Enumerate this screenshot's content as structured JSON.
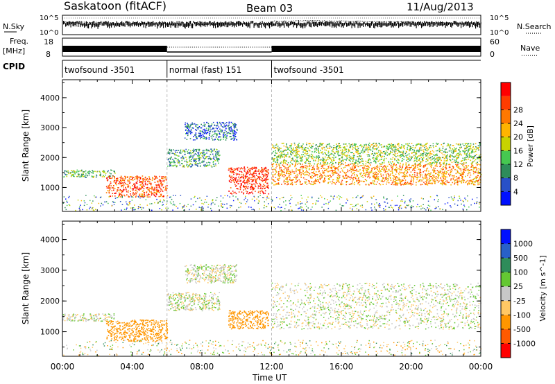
{
  "header": {
    "station": "Saskatoon (fitACF)",
    "beam": "Beam 03",
    "date": "11/Aug/2013"
  },
  "strips": {
    "nsky_label": "N.Sky",
    "nsearch_label": "N.Search",
    "freq_label_1": "Freq.",
    "freq_label_2": "[MHz]",
    "nave_label": "Nave",
    "cpid_label": "CPID",
    "nsky_ticks": [
      "10^5",
      "10^0"
    ],
    "nsearch_ticks": [
      "10^5",
      "10^0"
    ],
    "freq_ticks": [
      "18",
      "8"
    ],
    "nave_ticks": [
      "60",
      "0"
    ]
  },
  "cpid_segments": [
    {
      "label": "twofsound -3501",
      "start": 0,
      "end": 6
    },
    {
      "label": "normal (fast) 151",
      "start": 6,
      "end": 12
    },
    {
      "label": "twofsound -3501",
      "start": 12,
      "end": 24
    }
  ],
  "xaxis": {
    "label": "Time UT",
    "ticks": [
      "00:00",
      "04:00",
      "08:00",
      "12:00",
      "16:00",
      "20:00",
      "00:00"
    ]
  },
  "power_panel": {
    "ylabel": "Slant Range [km]",
    "yticks": [
      "1000",
      "2000",
      "3000",
      "4000"
    ],
    "colorbar_label": "Power [dB]",
    "colorbar_ticks": [
      "4",
      "8",
      "12",
      "16",
      "20",
      "24",
      "28"
    ],
    "colorbar_colors": [
      "#0010ff",
      "#2850c8",
      "#2e8c5a",
      "#46c850",
      "#c8d200",
      "#ffb400",
      "#ff7800",
      "#ff3c00",
      "#ff0000"
    ]
  },
  "velocity_panel": {
    "ylabel": "Slant Range [km]",
    "yticks": [
      "1000",
      "2000",
      "3000",
      "4000"
    ],
    "colorbar_label": "Velocity [m s^-1]",
    "colorbar_ticks": [
      "-1000",
      "-500",
      "-100",
      "-25",
      "25",
      "100",
      "500",
      "1000"
    ],
    "colorbar_colors": [
      "#ff0000",
      "#ff5a00",
      "#ff9600",
      "#ffc864",
      "#c8c8c8",
      "#64c832",
      "#2e8c5a",
      "#2860c8",
      "#0010ff"
    ]
  },
  "chart_data": [
    {
      "type": "heatmap",
      "title": "Power",
      "xlabel": "Time UT",
      "ylabel": "Slant Range [km]",
      "xlim": [
        0,
        24
      ],
      "ylim": [
        200,
        4600
      ],
      "zlabel": "Power [dB]",
      "zlim": [
        0,
        32
      ],
      "regions": [
        {
          "t0": 0.0,
          "t1": 3.0,
          "r0": 1350,
          "r1": 1600,
          "value": 12
        },
        {
          "t0": 2.5,
          "t1": 6.0,
          "r0": 700,
          "r1": 1400,
          "value": 26
        },
        {
          "t0": 6.0,
          "t1": 9.0,
          "r0": 1700,
          "r1": 2300,
          "value": 10
        },
        {
          "t0": 7.0,
          "t1": 10.0,
          "r0": 2600,
          "r1": 3200,
          "value": 6
        },
        {
          "t0": 9.5,
          "t1": 11.8,
          "r0": 800,
          "r1": 1700,
          "value": 28
        },
        {
          "t0": 12.0,
          "t1": 24.0,
          "r0": 1100,
          "r1": 1800,
          "value": 22
        },
        {
          "t0": 12.0,
          "t1": 24.0,
          "r0": 1800,
          "r1": 2500,
          "value": 14
        }
      ]
    },
    {
      "type": "heatmap",
      "title": "Velocity",
      "xlabel": "Time UT",
      "ylabel": "Slant Range [km]",
      "xlim": [
        0,
        24
      ],
      "ylim": [
        200,
        4600
      ],
      "zlabel": "Velocity [m s^-1]",
      "zlim": [
        -1000,
        1000
      ],
      "regions": [
        {
          "t0": 0.0,
          "t1": 3.0,
          "r0": 1350,
          "r1": 1600,
          "value": 0
        },
        {
          "t0": 2.5,
          "t1": 6.0,
          "r0": 700,
          "r1": 1400,
          "value": -300
        },
        {
          "t0": 6.0,
          "t1": 9.0,
          "r0": 1700,
          "r1": 2300,
          "value": 0
        },
        {
          "t0": 7.0,
          "t1": 10.0,
          "r0": 2600,
          "r1": 3200,
          "value": 0
        },
        {
          "t0": 9.5,
          "t1": 11.8,
          "r0": 1100,
          "r1": 1700,
          "value": -200
        },
        {
          "t0": 12.0,
          "t1": 24.0,
          "r0": 1100,
          "r1": 2600,
          "value": 0
        }
      ]
    }
  ]
}
